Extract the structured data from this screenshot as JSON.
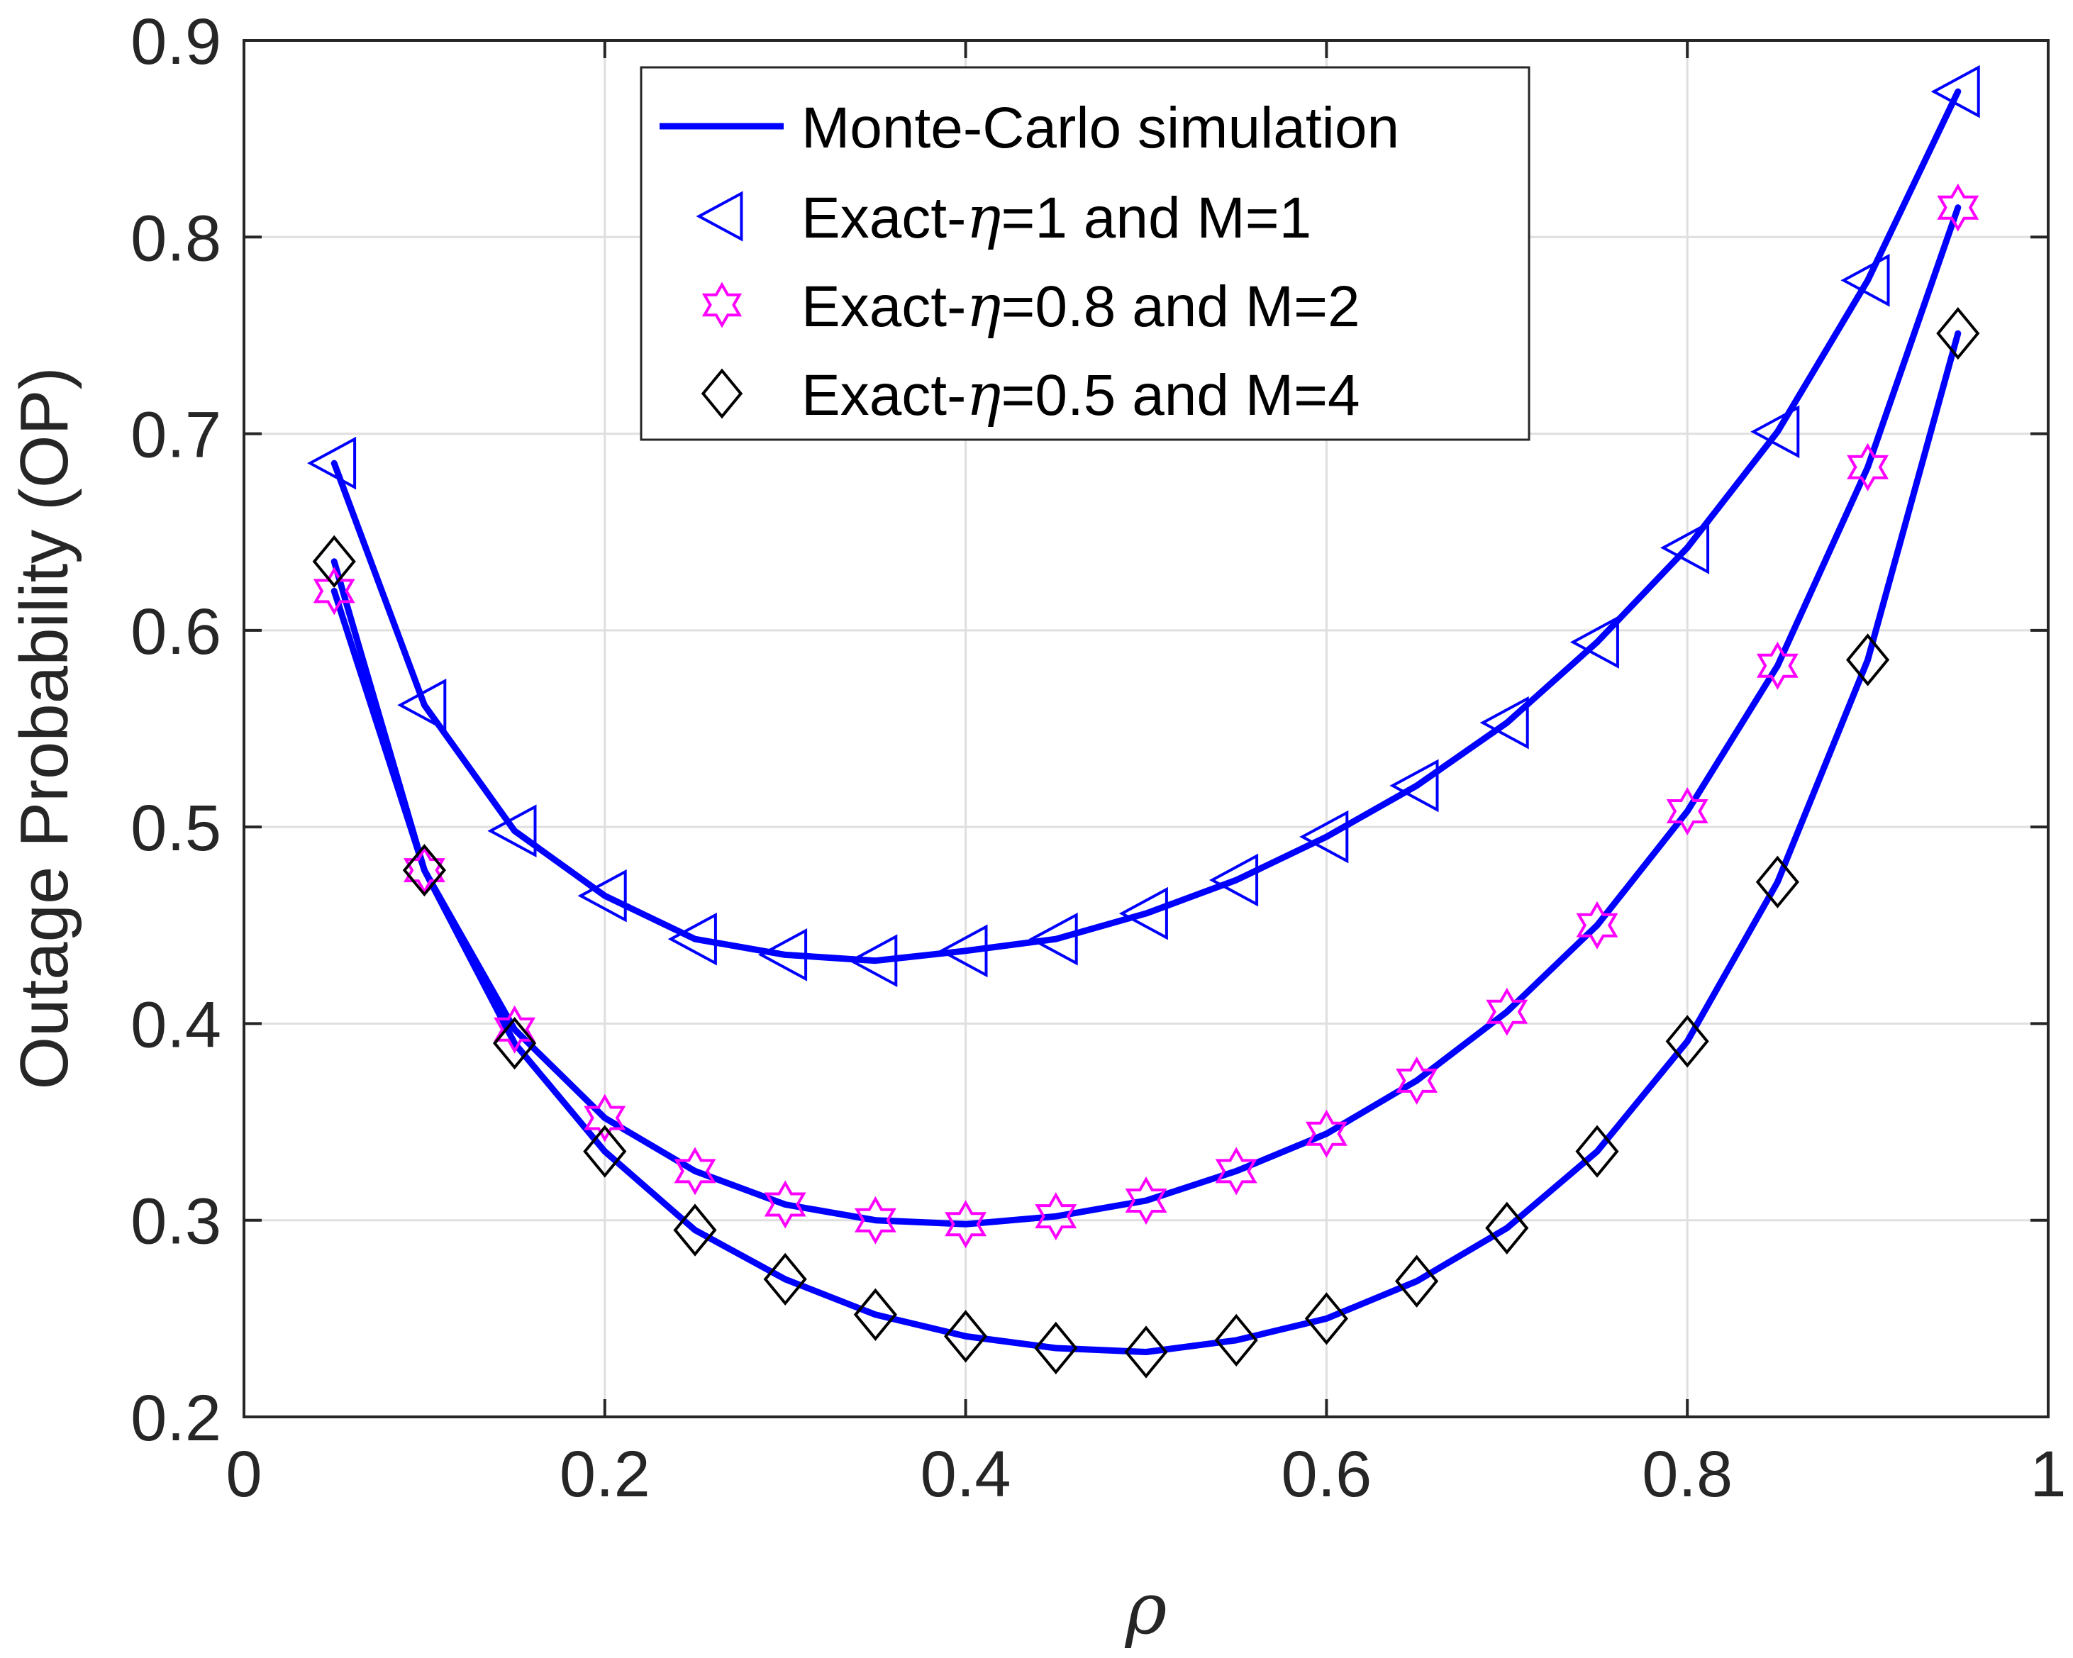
{
  "chart_data": {
    "type": "line",
    "title": "",
    "xlabel": "ρ",
    "ylabel": "Outage Probability (OP)",
    "xlim": [
      0,
      1
    ],
    "ylim": [
      0.2,
      0.9
    ],
    "xticks": [
      0,
      0.2,
      0.4,
      0.6,
      0.8,
      1
    ],
    "xtick_labels": [
      "0",
      "0.2",
      "0.4",
      "0.6",
      "0.8",
      "1"
    ],
    "yticks": [
      0.2,
      0.3,
      0.4,
      0.5,
      0.6,
      0.7,
      0.8,
      0.9
    ],
    "ytick_labels": [
      "0.2",
      "0.3",
      "0.4",
      "0.5",
      "0.6",
      "0.7",
      "0.8",
      "0.9"
    ],
    "grid": true,
    "legend_position": "top-center",
    "x": [
      0.05,
      0.1,
      0.15,
      0.2,
      0.25,
      0.3,
      0.35,
      0.4,
      0.45,
      0.5,
      0.55,
      0.6,
      0.65,
      0.7,
      0.75,
      0.8,
      0.85,
      0.9,
      0.95
    ],
    "legend": [
      {
        "label_prefix": "Monte-Carlo simulation",
        "symbol": "",
        "label_suffix": "",
        "marker": "line",
        "color": "#0000ff"
      },
      {
        "label_prefix": "Exact-",
        "symbol": "η",
        "label_suffix": "=1 and M=1",
        "marker": "triangle-left",
        "color": "#0000ff"
      },
      {
        "label_prefix": "Exact-",
        "symbol": "η",
        "label_suffix": "=0.8 and M=2",
        "marker": "hexagram",
        "color": "#ff00ff"
      },
      {
        "label_prefix": "Exact-",
        "symbol": "η",
        "label_suffix": "=0.5 and M=4",
        "marker": "diamond",
        "color": "#000000"
      }
    ],
    "series": [
      {
        "name": "Exact-η=1 and M=1",
        "marker": "triangle-left",
        "marker_color": "#0000ff",
        "line_color": "#0000ff",
        "values": [
          0.685,
          0.562,
          0.498,
          0.465,
          0.443,
          0.435,
          0.432,
          0.437,
          0.443,
          0.456,
          0.473,
          0.495,
          0.521,
          0.553,
          0.594,
          0.642,
          0.701,
          0.778,
          0.874
        ]
      },
      {
        "name": "Exact-η=0.8 and M=2",
        "marker": "hexagram",
        "marker_color": "#ff00ff",
        "line_color": "#0000ff",
        "values": [
          0.62,
          0.478,
          0.397,
          0.352,
          0.325,
          0.308,
          0.3,
          0.298,
          0.302,
          0.31,
          0.325,
          0.344,
          0.371,
          0.406,
          0.45,
          0.508,
          0.582,
          0.683,
          0.815
        ]
      },
      {
        "name": "Exact-η=0.5 and M=4",
        "marker": "diamond",
        "marker_color": "#000000",
        "line_color": "#0000ff",
        "values": [
          0.635,
          0.478,
          0.39,
          0.335,
          0.295,
          0.27,
          0.252,
          0.241,
          0.235,
          0.233,
          0.239,
          0.25,
          0.269,
          0.296,
          0.335,
          0.391,
          0.472,
          0.585,
          0.751
        ]
      }
    ]
  }
}
